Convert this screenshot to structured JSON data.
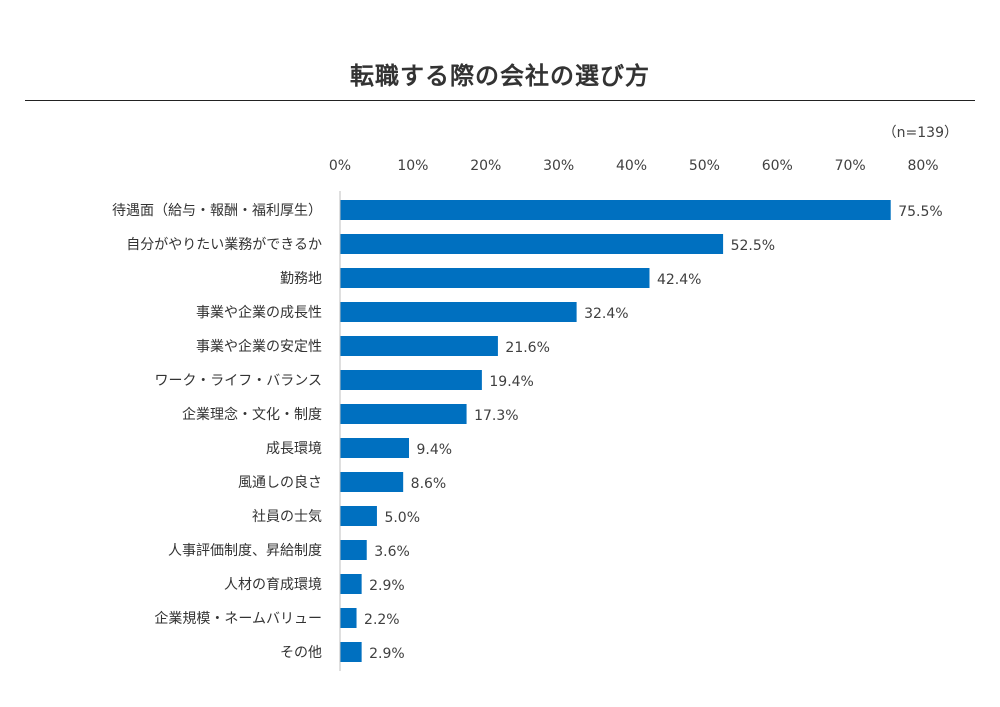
{
  "chart_data": {
    "type": "bar",
    "orientation": "horizontal",
    "title": "転職する際の会社の選び方",
    "sample_note": "（n=139）",
    "xlim": [
      0,
      80
    ],
    "x_ticks": [
      "0%",
      "10%",
      "20%",
      "30%",
      "40%",
      "50%",
      "60%",
      "70%",
      "80%"
    ],
    "bar_color": "#0070C0",
    "grid": false,
    "legend": "none",
    "categories": [
      "待遇面（給与・報酬・福利厚生）",
      "自分がやりたい業務ができるか",
      "勤務地",
      "事業や企業の成長性",
      "事業や企業の安定性",
      "ワーク・ライフ・バランス",
      "企業理念・文化・制度",
      "成長環境",
      "風通しの良さ",
      "社員の士気",
      "人事評価制度、昇給制度",
      "人材の育成環境",
      "企業規模・ネームバリュー",
      "その他"
    ],
    "values": [
      75.5,
      52.5,
      42.4,
      32.4,
      21.6,
      19.4,
      17.3,
      9.4,
      8.6,
      5.0,
      3.6,
      2.9,
      2.2,
      2.9
    ],
    "value_labels": [
      "75.5%",
      "52.5%",
      "42.4%",
      "32.4%",
      "21.6%",
      "19.4%",
      "17.3%",
      "9.4%",
      "8.6%",
      "5.0%",
      "3.6%",
      "2.9%",
      "2.2%",
      "2.9%"
    ]
  }
}
